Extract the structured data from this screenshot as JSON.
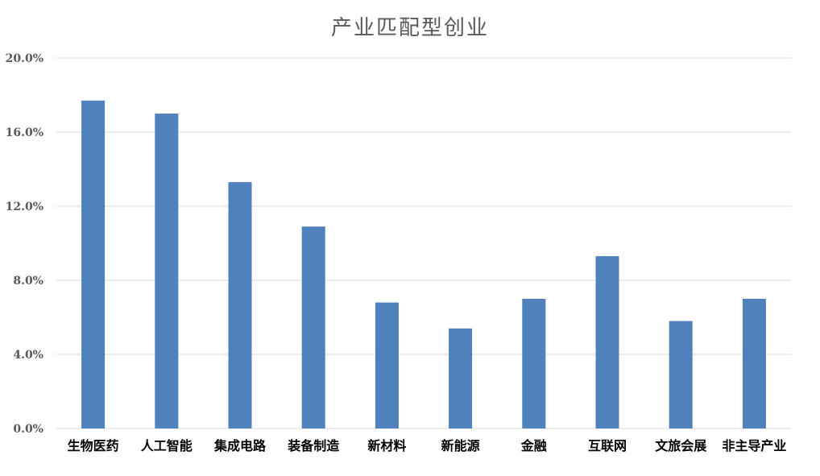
{
  "chart_data": {
    "type": "bar",
    "title": "产业匹配型创业",
    "xlabel": "",
    "ylabel": "",
    "categories": [
      "生物医药",
      "人工智能",
      "集成电路",
      "装备制造",
      "新材料",
      "新能源",
      "金融",
      "互联网",
      "文旅会展",
      "非主导产业"
    ],
    "values": [
      17.7,
      17.0,
      13.3,
      10.9,
      6.8,
      5.4,
      7.0,
      9.3,
      5.8,
      7.0
    ],
    "unit": "%",
    "ylim": [
      0,
      20
    ],
    "yticks": [
      0,
      4,
      8,
      12,
      16,
      20
    ],
    "ytick_labels": [
      "0.0%",
      "4.0%",
      "8.0%",
      "12.0%",
      "16.0%",
      "20.0%"
    ],
    "grid": true,
    "legend": "none",
    "bar_color": "#4f81bd",
    "grid_color": "#d9d9d9"
  }
}
